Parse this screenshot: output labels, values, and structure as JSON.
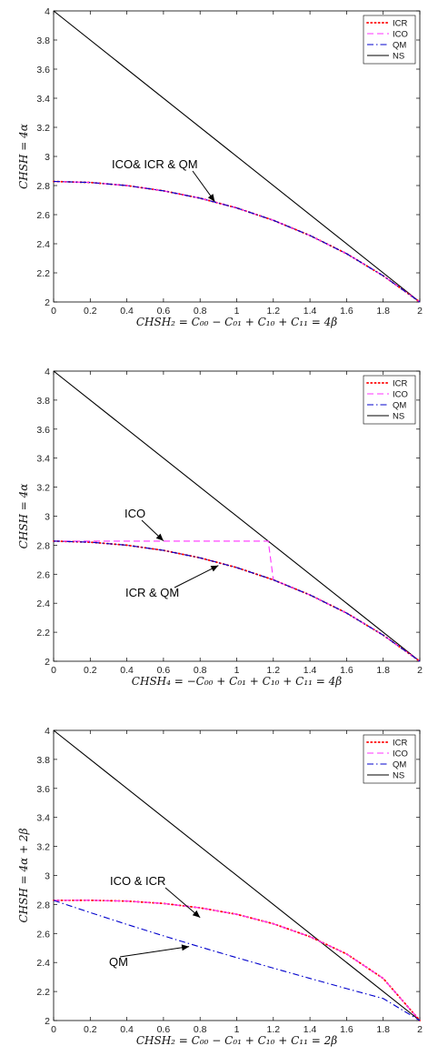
{
  "chart_data": [
    {
      "type": "line",
      "xlabel": "CHSH₂ = C₀₀ − C₀₁ + C₁₀ + C₁₁ = 4β",
      "ylabel": "CHSH = 4α",
      "xlim": [
        0,
        2
      ],
      "ylim": [
        2,
        4
      ],
      "x_ticks": [
        "0",
        "0.2",
        "0.4",
        "0.6",
        "0.8",
        "1",
        "1.2",
        "1.4",
        "1.6",
        "1.8",
        "2"
      ],
      "y_ticks": [
        "2",
        "2.2",
        "2.4",
        "2.6",
        "2.8",
        "3",
        "3.2",
        "3.4",
        "3.6",
        "3.8",
        "4"
      ],
      "legend_position": "top-right",
      "grid": false,
      "series": [
        {
          "name": "ICR",
          "color": "#ff0000",
          "style": "dotted",
          "x": [
            0,
            0.2,
            0.4,
            0.6,
            0.8,
            1.0,
            1.2,
            1.4,
            1.6,
            1.8,
            2.0
          ],
          "y": [
            2.828,
            2.821,
            2.8,
            2.764,
            2.713,
            2.646,
            2.561,
            2.457,
            2.332,
            2.18,
            2.0
          ]
        },
        {
          "name": "ICO",
          "color": "#ff33ff",
          "style": "dashed",
          "x": [
            0,
            0.2,
            0.4,
            0.6,
            0.8,
            1.0,
            1.2,
            1.4,
            1.6,
            1.8,
            2.0
          ],
          "y": [
            2.828,
            2.821,
            2.8,
            2.764,
            2.713,
            2.646,
            2.561,
            2.457,
            2.332,
            2.18,
            2.0
          ]
        },
        {
          "name": "QM",
          "color": "#0000cc",
          "style": "dashdot",
          "x": [
            0,
            0.2,
            0.4,
            0.6,
            0.8,
            1.0,
            1.2,
            1.4,
            1.6,
            1.8,
            2.0
          ],
          "y": [
            2.828,
            2.821,
            2.8,
            2.764,
            2.713,
            2.646,
            2.561,
            2.457,
            2.332,
            2.18,
            2.0
          ]
        },
        {
          "name": "NS",
          "color": "#000000",
          "style": "solid",
          "x": [
            0,
            2
          ],
          "y": [
            4,
            2
          ]
        }
      ],
      "annotations": [
        {
          "text": "ICO& ICR & QM",
          "arrow_to": [
            0.88,
            2.69
          ]
        }
      ]
    },
    {
      "type": "line",
      "xlabel": "CHSH₄ = −C₀₀ + C₀₁ + C₁₀ + C₁₁ = 4β",
      "ylabel": "CHSH = 4α",
      "xlim": [
        0,
        2
      ],
      "ylim": [
        2,
        4
      ],
      "x_ticks": [
        "0",
        "0.2",
        "0.4",
        "0.6",
        "0.8",
        "1",
        "1.2",
        "1.4",
        "1.6",
        "1.8",
        "2"
      ],
      "y_ticks": [
        "2",
        "2.2",
        "2.4",
        "2.6",
        "2.8",
        "3",
        "3.2",
        "3.4",
        "3.6",
        "3.8",
        "4"
      ],
      "legend_position": "top-right",
      "grid": false,
      "series": [
        {
          "name": "ICR",
          "color": "#ff0000",
          "style": "dotted",
          "x": [
            0,
            0.2,
            0.4,
            0.6,
            0.8,
            1.0,
            1.2,
            1.4,
            1.6,
            1.8,
            2.0
          ],
          "y": [
            2.828,
            2.821,
            2.8,
            2.764,
            2.713,
            2.646,
            2.561,
            2.457,
            2.332,
            2.18,
            2.0
          ]
        },
        {
          "name": "ICO",
          "color": "#ff33ff",
          "style": "dashed",
          "x": [
            0,
            1.172,
            1.2,
            1.4,
            1.6,
            1.8,
            2.0
          ],
          "y": [
            2.828,
            2.828,
            2.561,
            2.457,
            2.332,
            2.18,
            2.0
          ]
        },
        {
          "name": "QM",
          "color": "#0000cc",
          "style": "dashdot",
          "x": [
            0,
            0.2,
            0.4,
            0.6,
            0.8,
            1.0,
            1.2,
            1.4,
            1.6,
            1.8,
            2.0
          ],
          "y": [
            2.828,
            2.821,
            2.8,
            2.764,
            2.713,
            2.646,
            2.561,
            2.457,
            2.332,
            2.18,
            2.0
          ]
        },
        {
          "name": "NS",
          "color": "#000000",
          "style": "solid",
          "x": [
            0,
            2
          ],
          "y": [
            4,
            2
          ]
        }
      ],
      "annotations": [
        {
          "text": "ICO",
          "arrow_to": [
            0.6,
            2.83
          ]
        },
        {
          "text": "ICR & QM",
          "arrow_to": [
            0.9,
            2.66
          ]
        }
      ]
    },
    {
      "type": "line",
      "xlabel": "CHSH₂ = C₀₀ − C₀₁ + C₁₀ + C₁₁ = 2β",
      "ylabel": "CHSH = 4α + 2β",
      "xlim": [
        0,
        2
      ],
      "ylim": [
        2,
        4
      ],
      "x_ticks": [
        "0",
        "0.2",
        "0.4",
        "0.6",
        "0.8",
        "1",
        "1.2",
        "1.4",
        "1.6",
        "1.8",
        "2"
      ],
      "y_ticks": [
        "2",
        "2.2",
        "2.4",
        "2.6",
        "2.8",
        "3",
        "3.2",
        "3.4",
        "3.6",
        "3.8",
        "4"
      ],
      "legend_position": "top-right",
      "grid": false,
      "series": [
        {
          "name": "ICR",
          "color": "#ff0000",
          "style": "dotted",
          "x": [
            0,
            0.2,
            0.4,
            0.6,
            0.8,
            1.0,
            1.2,
            1.4,
            1.6,
            1.8,
            2.0
          ],
          "y": [
            2.828,
            2.829,
            2.823,
            2.807,
            2.777,
            2.732,
            2.667,
            2.578,
            2.459,
            2.29,
            2.0
          ]
        },
        {
          "name": "ICO",
          "color": "#ff33ff",
          "style": "dashed",
          "x": [
            0,
            0.2,
            0.4,
            0.6,
            0.8,
            1.0,
            1.2,
            1.4,
            1.6,
            1.8,
            2.0
          ],
          "y": [
            2.828,
            2.829,
            2.823,
            2.807,
            2.777,
            2.732,
            2.667,
            2.578,
            2.459,
            2.29,
            2.0
          ]
        },
        {
          "name": "QM",
          "color": "#0000cc",
          "style": "dashdot",
          "x": [
            0,
            0.2,
            0.4,
            0.6,
            0.8,
            1.0,
            1.2,
            1.4,
            1.6,
            1.8,
            2.0
          ],
          "y": [
            2.828,
            2.744,
            2.663,
            2.584,
            2.507,
            2.433,
            2.361,
            2.29,
            2.22,
            2.152,
            2.0
          ]
        },
        {
          "name": "NS",
          "color": "#000000",
          "style": "solid",
          "x": [
            0,
            2
          ],
          "y": [
            4,
            2
          ]
        }
      ],
      "annotations": [
        {
          "text": "ICO & ICR",
          "arrow_to": [
            0.8,
            2.71
          ]
        },
        {
          "text": "QM",
          "arrow_to": [
            0.74,
            2.51
          ]
        }
      ]
    }
  ]
}
